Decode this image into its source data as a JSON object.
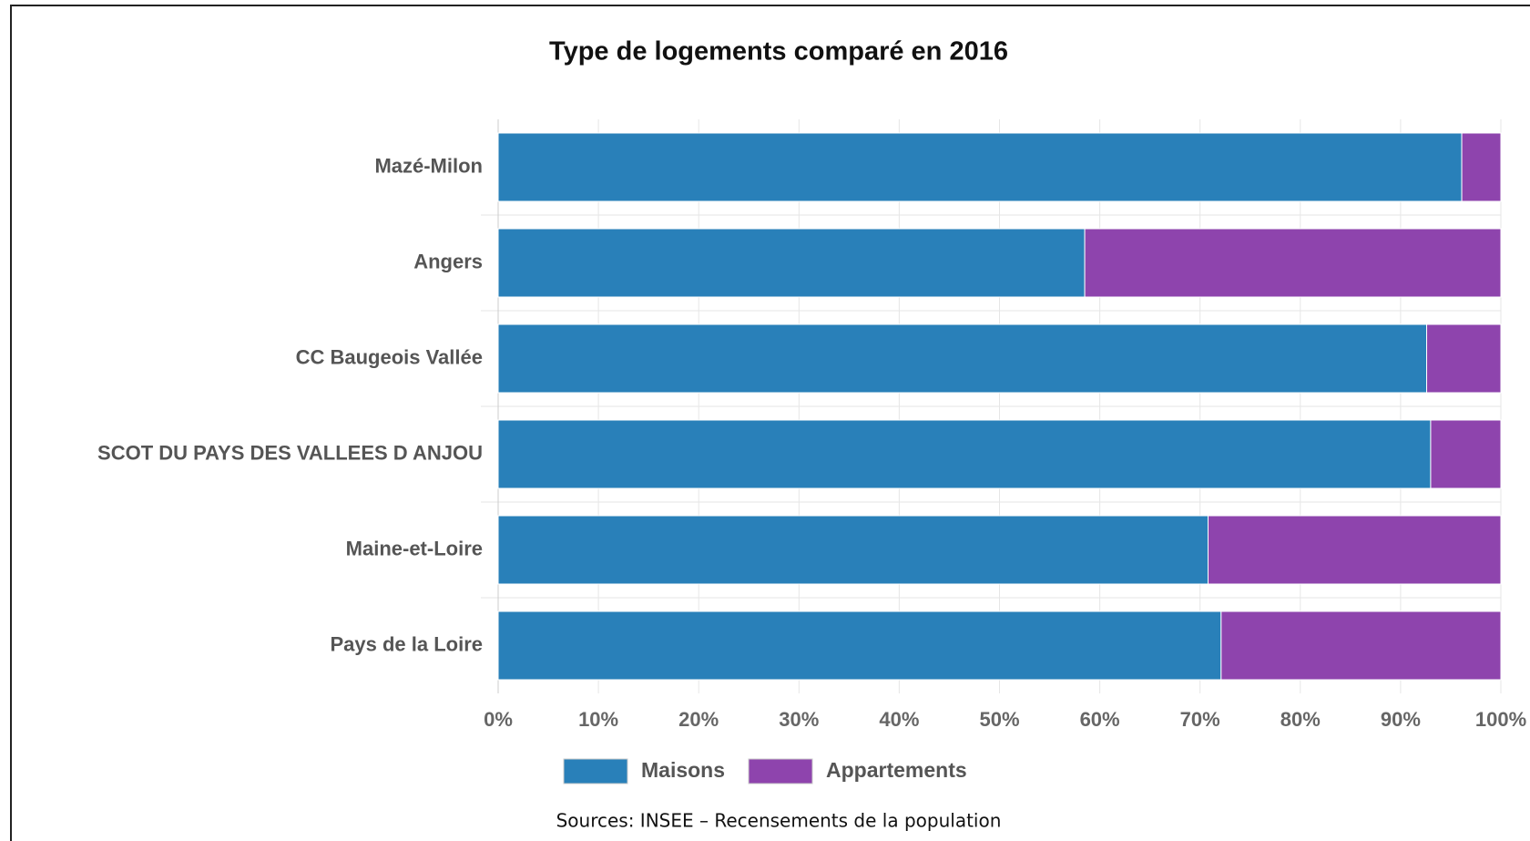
{
  "chart_data": {
    "type": "bar",
    "orientation": "horizontal",
    "stacked": true,
    "title": "Type de logements comparé en 2016",
    "categories": [
      "Mazé-Milon",
      "Angers",
      "CC Baugeois Vallée",
      "SCOT DU PAYS DES VALLEES D ANJOU",
      "Maine-et-Loire",
      "Pays de la Loire"
    ],
    "series": [
      {
        "name": "Maisons",
        "color": "#2980b9",
        "values": [
          96.1,
          58.5,
          92.6,
          93.0,
          70.8,
          72.1
        ]
      },
      {
        "name": "Appartements",
        "color": "#8e44ad",
        "values": [
          3.9,
          41.5,
          7.4,
          7.0,
          29.2,
          27.9
        ]
      }
    ],
    "xlim": [
      0,
      100
    ],
    "xticks": [
      {
        "value": 0,
        "label": "0%"
      },
      {
        "value": 10,
        "label": "10%"
      },
      {
        "value": 20,
        "label": "20%"
      },
      {
        "value": 30,
        "label": "30%"
      },
      {
        "value": 40,
        "label": "40%"
      },
      {
        "value": 50,
        "label": "50%"
      },
      {
        "value": 60,
        "label": "60%"
      },
      {
        "value": 70,
        "label": "70%"
      },
      {
        "value": 80,
        "label": "80%"
      },
      {
        "value": 90,
        "label": "90%"
      },
      {
        "value": 100,
        "label": "100%"
      }
    ],
    "grid": true,
    "legend": "bottom",
    "source": "Sources: INSEE – Recensements de la population"
  }
}
